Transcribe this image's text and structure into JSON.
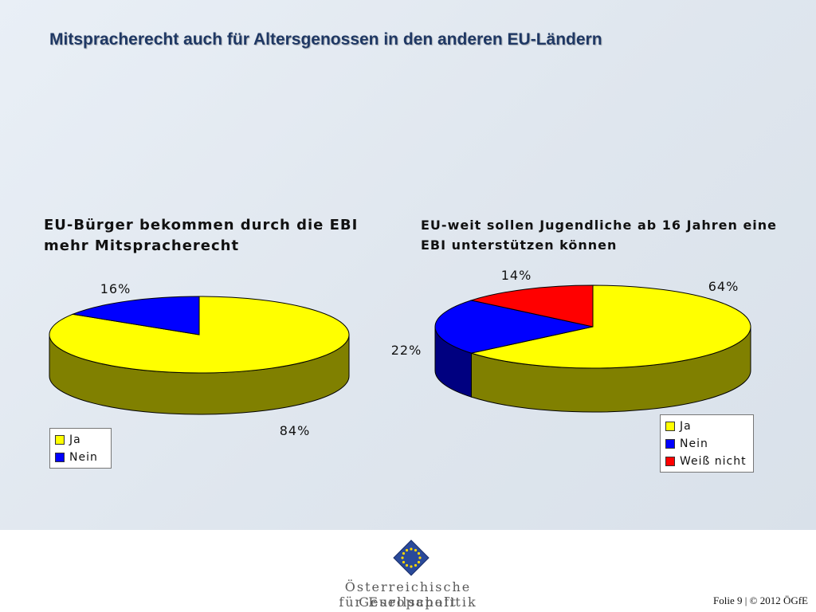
{
  "slide": {
    "title": "Mitspracherecht auch für Altersgenossen in den anderen EU-Ländern"
  },
  "chart_data": [
    {
      "type": "pie",
      "title": "EU-Bürger bekommen durch die EBI mehr Mitspracherecht",
      "categories": [
        "Ja",
        "Nein"
      ],
      "values": [
        84,
        16
      ],
      "labels": [
        "84%",
        "16%"
      ],
      "colors": [
        "#ffff00",
        "#0000ff"
      ],
      "legend": "bottom-left",
      "style": "3d"
    },
    {
      "type": "pie",
      "title": "EU-weit sollen Jugendliche ab 16 Jahren eine EBI unterstützen können",
      "categories": [
        "Ja",
        "Nein",
        "Weiß nicht"
      ],
      "values": [
        64,
        22,
        14
      ],
      "labels": [
        "64%",
        "22%",
        "14%"
      ],
      "colors": [
        "#ffff00",
        "#0000ff",
        "#ff0000"
      ],
      "legend": "bottom-right",
      "style": "3d"
    }
  ],
  "footer": {
    "org_line1": "Österreichische Gesellschaft",
    "org_line2": "für Europapolitik",
    "folio": "Folie 9 | © 2012 ÖGfE"
  },
  "colors": {
    "title": "#1f3864",
    "logo": "#2a4a9a",
    "logo_star": "#ffd700"
  }
}
